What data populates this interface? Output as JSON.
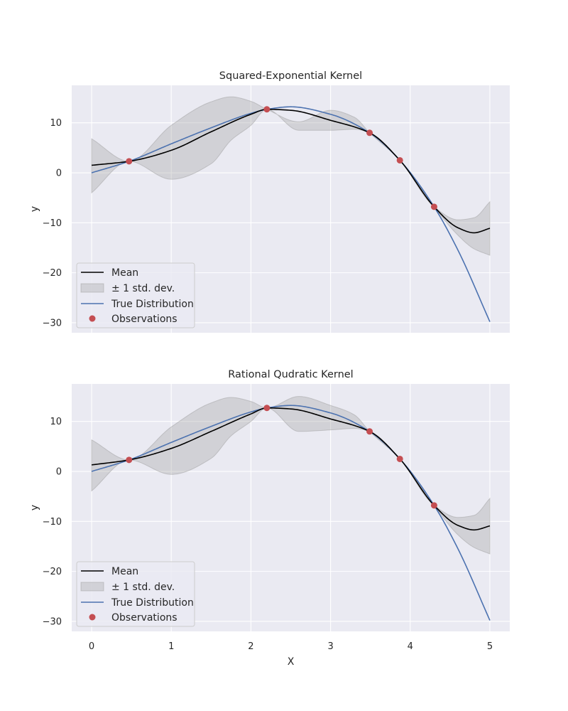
{
  "chart_data": [
    {
      "type": "line",
      "title": "Squared-Exponential Kernel",
      "xlabel": "",
      "ylabel": "y",
      "xlim": [
        -0.25,
        5.25
      ],
      "ylim": [
        -32.0,
        17.5
      ],
      "xticks": [
        0,
        1,
        2,
        3,
        4,
        5
      ],
      "xtick_labels_visible": false,
      "yticks": [
        -30,
        -20,
        -10,
        0,
        10
      ],
      "ytick_labels": [
        "−30",
        "−20",
        "−10",
        "0",
        "10"
      ],
      "grid": true,
      "legend_position": "lower-left",
      "legend": {
        "mean": "Mean",
        "band": "± 1 std. dev.",
        "truth": "True Distribution",
        "obs": "Observations"
      },
      "colors": {
        "mean": "#000000",
        "band": "#9a9a9a",
        "truth": "#4c72b0",
        "obs": "#c44e52"
      },
      "observations": {
        "x": [
          0.47,
          2.2,
          3.49,
          3.87,
          4.3
        ],
        "y": [
          2.3,
          12.7,
          8.0,
          2.5,
          -6.8
        ]
      },
      "true_distribution": {
        "x": [
          0,
          0.47,
          1.0,
          1.5,
          2.0,
          2.2,
          2.5,
          3.0,
          3.49,
          3.87,
          4.3,
          4.6,
          5.0
        ],
        "y": [
          0.0,
          2.3,
          5.8,
          9.0,
          11.9,
          12.7,
          13.2,
          11.7,
          8.0,
          2.5,
          -6.8,
          -15.5,
          -29.8
        ]
      },
      "mean": {
        "x": [
          0,
          0.47,
          1.0,
          1.5,
          2.0,
          2.2,
          2.5,
          3.0,
          3.49,
          3.87,
          4.3,
          4.6,
          4.8,
          5.0
        ],
        "y": [
          1.5,
          2.3,
          4.5,
          8.2,
          11.7,
          12.7,
          12.5,
          10.5,
          8.0,
          2.5,
          -6.8,
          -11.0,
          -12.0,
          -11.1
        ]
      },
      "band": {
        "x": [
          0,
          0.47,
          1.0,
          1.5,
          1.75,
          2.0,
          2.2,
          2.6,
          3.0,
          3.3,
          3.49,
          3.87,
          4.3,
          4.6,
          4.8,
          5.0
        ],
        "upper": [
          6.8,
          2.3,
          9.5,
          14.2,
          15.2,
          14.3,
          12.7,
          10.2,
          12.5,
          11.1,
          8.0,
          2.5,
          -6.8,
          -9.4,
          -9.0,
          -5.8
        ],
        "lower": [
          -4.0,
          2.3,
          -1.3,
          1.8,
          6.5,
          9.5,
          12.7,
          8.5,
          8.5,
          8.7,
          8.0,
          2.5,
          -6.8,
          -12.5,
          -15.2,
          -16.5
        ]
      }
    },
    {
      "type": "line",
      "title": "Rational Qudratic Kernel",
      "xlabel": "X",
      "ylabel": "y",
      "xlim": [
        -0.25,
        5.25
      ],
      "ylim": [
        -32.0,
        17.5
      ],
      "xticks": [
        0,
        1,
        2,
        3,
        4,
        5
      ],
      "xtick_labels": [
        "0",
        "1",
        "2",
        "3",
        "4",
        "5"
      ],
      "yticks": [
        -30,
        -20,
        -10,
        0,
        10
      ],
      "ytick_labels": [
        "−30",
        "−20",
        "−10",
        "0",
        "10"
      ],
      "grid": true,
      "legend_position": "lower-left",
      "legend": {
        "mean": "Mean",
        "band": "± 1 std. dev.",
        "truth": "True Distribution",
        "obs": "Observations"
      },
      "colors": {
        "mean": "#000000",
        "band": "#9a9a9a",
        "truth": "#4c72b0",
        "obs": "#c44e52"
      },
      "observations": {
        "x": [
          0.47,
          2.2,
          3.49,
          3.87,
          4.3
        ],
        "y": [
          2.3,
          12.7,
          8.0,
          2.5,
          -6.8
        ]
      },
      "true_distribution": {
        "x": [
          0,
          0.47,
          1.0,
          1.5,
          2.0,
          2.2,
          2.5,
          3.0,
          3.49,
          3.87,
          4.3,
          4.6,
          5.0
        ],
        "y": [
          0.0,
          2.3,
          5.8,
          9.0,
          11.9,
          12.7,
          13.2,
          11.7,
          8.0,
          2.5,
          -6.8,
          -15.5,
          -29.8
        ]
      },
      "mean": {
        "x": [
          0,
          0.47,
          1.0,
          1.5,
          2.0,
          2.2,
          2.5,
          3.0,
          3.49,
          3.87,
          4.3,
          4.6,
          4.8,
          5.0
        ],
        "y": [
          1.3,
          2.3,
          4.6,
          8.0,
          11.5,
          12.7,
          12.5,
          10.5,
          8.0,
          2.5,
          -6.8,
          -10.8,
          -11.7,
          -10.9
        ]
      },
      "band": {
        "x": [
          0,
          0.47,
          1.0,
          1.5,
          1.75,
          2.0,
          2.2,
          2.6,
          3.0,
          3.3,
          3.49,
          3.87,
          4.3,
          4.6,
          4.8,
          5.0
        ],
        "upper": [
          6.3,
          2.3,
          8.9,
          13.7,
          14.8,
          14.0,
          12.7,
          15.0,
          13.2,
          11.3,
          8.0,
          2.5,
          -6.8,
          -9.2,
          -8.8,
          -5.4
        ],
        "lower": [
          -3.9,
          2.3,
          -0.6,
          2.6,
          7.1,
          10.0,
          12.7,
          8.0,
          8.3,
          8.6,
          8.0,
          2.5,
          -6.8,
          -12.7,
          -15.2,
          -16.5
        ]
      }
    }
  ]
}
